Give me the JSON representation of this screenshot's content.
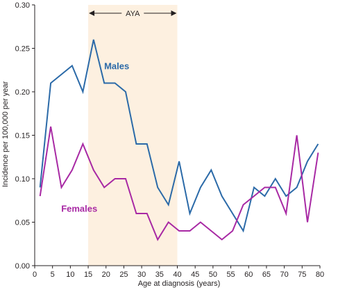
{
  "chart_data": {
    "type": "line",
    "xlabel": "Age at diagnosis (years)",
    "ylabel": "Incidence per 100,000 per year",
    "xlim": [
      0,
      80
    ],
    "ylim": [
      0,
      0.3
    ],
    "x_ticks": [
      0,
      5,
      10,
      15,
      20,
      25,
      30,
      35,
      40,
      45,
      50,
      55,
      60,
      65,
      70,
      75,
      80
    ],
    "y_ticks": [
      0.0,
      0.05,
      0.1,
      0.15,
      0.2,
      0.25,
      0.3
    ],
    "y_tick_labels": [
      "0.00",
      "0.05",
      "0.10",
      "0.15",
      "0.20",
      "0.25",
      "0.30"
    ],
    "grid": false,
    "band": {
      "label": "AYA",
      "x_start": 15,
      "x_end": 40,
      "color": "#fdf0e0"
    },
    "series": [
      {
        "name": "Males",
        "color": "#2b6aa8",
        "x": [
          1.5,
          4.5,
          7.5,
          10.5,
          13.5,
          16.5,
          19.5,
          22.5,
          25.5,
          28.5,
          31.5,
          34.5,
          37.5,
          40.5,
          43.5,
          46.5,
          49.5,
          52.5,
          55.5,
          58.5,
          61.5,
          64.5,
          67.5,
          70.5,
          73.5,
          76.5,
          79.5
        ],
        "values": [
          0.09,
          0.21,
          0.22,
          0.23,
          0.2,
          0.26,
          0.21,
          0.21,
          0.2,
          0.14,
          0.14,
          0.09,
          0.07,
          0.12,
          0.06,
          0.09,
          0.11,
          0.08,
          0.06,
          0.04,
          0.09,
          0.08,
          0.1,
          0.08,
          0.09,
          0.12,
          0.14
        ]
      },
      {
        "name": "Females",
        "color": "#a829a4",
        "x": [
          1.5,
          4.5,
          7.5,
          10.5,
          13.5,
          16.5,
          19.5,
          22.5,
          25.5,
          28.5,
          31.5,
          34.5,
          37.5,
          40.5,
          43.5,
          46.5,
          49.5,
          52.5,
          55.5,
          58.5,
          61.5,
          64.5,
          67.5,
          70.5,
          73.5,
          76.5,
          79.5
        ],
        "values": [
          0.08,
          0.16,
          0.09,
          0.11,
          0.14,
          0.11,
          0.09,
          0.1,
          0.1,
          0.06,
          0.06,
          0.03,
          0.05,
          0.04,
          0.04,
          0.05,
          0.04,
          0.03,
          0.04,
          0.07,
          0.08,
          0.09,
          0.09,
          0.06,
          0.15,
          0.05,
          0.13
        ]
      }
    ]
  }
}
